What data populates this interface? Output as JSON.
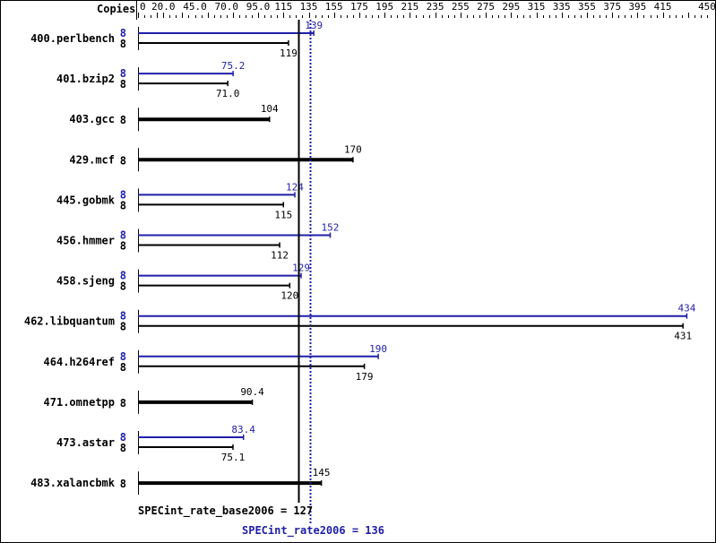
{
  "chart_data": {
    "type": "bar",
    "header_label": "Copies",
    "xlim": [
      0,
      450
    ],
    "ticks": [
      "0",
      "20.0",
      "45.0",
      "70.0",
      "95.0",
      "115",
      "135",
      "155",
      "175",
      "195",
      "215",
      "235",
      "255",
      "275",
      "295",
      "315",
      "335",
      "355",
      "375",
      "395",
      "415",
      "450"
    ],
    "tick_values": [
      0,
      20,
      45,
      70,
      95,
      115,
      135,
      155,
      175,
      195,
      215,
      235,
      255,
      275,
      295,
      315,
      335,
      355,
      375,
      395,
      415,
      450
    ],
    "colors": {
      "base": "#000000",
      "peak": "#1f1fa8"
    },
    "benchmarks": [
      {
        "name": "400.perlbench",
        "copies_peak": "8",
        "copies_base": "8",
        "peak": 139,
        "base": 119,
        "peak_label": "139",
        "base_label": "119"
      },
      {
        "name": "401.bzip2",
        "copies_peak": "8",
        "copies_base": "8",
        "peak": 75.2,
        "base": 71.0,
        "peak_label": "75.2",
        "base_label": "71.0"
      },
      {
        "name": "403.gcc",
        "copies_base": "8",
        "base": 104,
        "base_label": "104"
      },
      {
        "name": "429.mcf",
        "copies_base": "8",
        "base": 170,
        "base_label": "170"
      },
      {
        "name": "445.gobmk",
        "copies_peak": "8",
        "copies_base": "8",
        "peak": 124,
        "base": 115,
        "peak_label": "124",
        "base_label": "115"
      },
      {
        "name": "456.hmmer",
        "copies_peak": "8",
        "copies_base": "8",
        "peak": 152,
        "base": 112,
        "peak_label": "152",
        "base_label": "112"
      },
      {
        "name": "458.sjeng",
        "copies_peak": "8",
        "copies_base": "8",
        "peak": 129,
        "base": 120,
        "peak_label": "129",
        "base_label": "120"
      },
      {
        "name": "462.libquantum",
        "copies_peak": "8",
        "copies_base": "8",
        "peak": 434,
        "base": 431,
        "peak_label": "434",
        "base_label": "431"
      },
      {
        "name": "464.h264ref",
        "copies_peak": "8",
        "copies_base": "8",
        "peak": 190,
        "base": 179,
        "peak_label": "190",
        "base_label": "179"
      },
      {
        "name": "471.omnetpp",
        "copies_base": "8",
        "base": 90.4,
        "base_label": "90.4"
      },
      {
        "name": "473.astar",
        "copies_peak": "8",
        "copies_base": "8",
        "peak": 83.4,
        "base": 75.1,
        "peak_label": "83.4",
        "base_label": "75.1"
      },
      {
        "name": "483.xalancbmk",
        "copies_base": "8",
        "base": 145,
        "base_label": "145"
      }
    ],
    "base_mean": 127,
    "peak_mean": 136,
    "base_mean_label": "SPECint_rate_base2006 = 127",
    "peak_mean_label": "SPECint_rate2006 = 136"
  }
}
